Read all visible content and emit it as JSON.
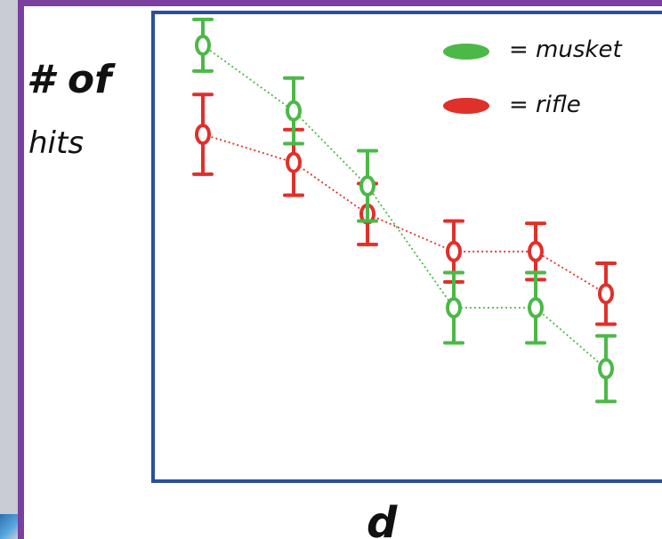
{
  "chart_data": {
    "type": "line",
    "title": "",
    "ylabel": "# of hits",
    "xlabel": "d",
    "x": [
      1,
      2,
      3,
      4,
      5,
      6
    ],
    "ylim": [
      0,
      10
    ],
    "grid": false,
    "legend_position": "top-right",
    "series": [
      {
        "name": "musket",
        "color": "#4cb848",
        "values": [
          9.3,
          7.9,
          6.3,
          3.7,
          3.7,
          2.4
        ],
        "err_low": [
          0.55,
          0.7,
          0.75,
          0.75,
          0.75,
          0.7
        ],
        "err_high": [
          0.55,
          0.7,
          0.75,
          0.75,
          0.75,
          0.7
        ]
      },
      {
        "name": "rifle",
        "color": "#e0302a",
        "values": [
          7.4,
          6.8,
          5.7,
          4.9,
          4.9,
          4.0
        ],
        "err_low": [
          0.85,
          0.7,
          0.65,
          0.65,
          0.6,
          0.65
        ],
        "err_high": [
          0.85,
          0.7,
          0.65,
          0.65,
          0.6,
          0.65
        ]
      }
    ]
  },
  "labels": {
    "y_label_line1": "# of",
    "y_label_line2": "hits",
    "x_label": "d",
    "legend_musket": "= musket",
    "legend_rifle": "= rifle"
  },
  "colors": {
    "plot_border": "#2a4f9c",
    "frame_border": "#7b3fa0"
  }
}
